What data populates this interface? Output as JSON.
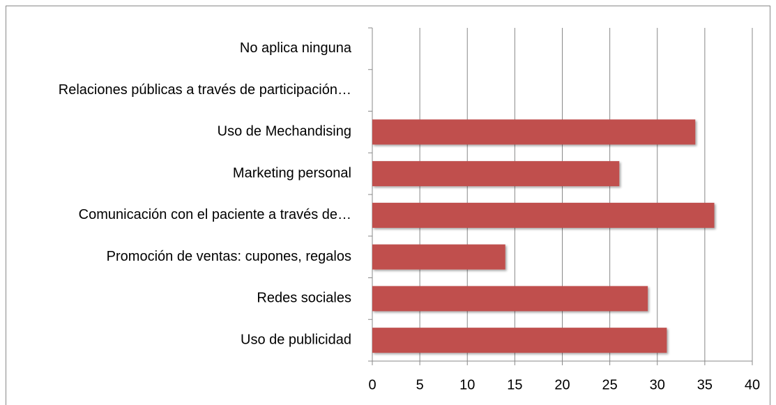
{
  "chart_data": {
    "type": "barh",
    "categories": [
      "No aplica ninguna",
      "Relaciones públicas a través de participación…",
      "Uso de Mechandising",
      "Marketing personal",
      "Comunicación con el paciente a través de…",
      "Promoción de ventas: cupones, regalos",
      "Redes sociales",
      "Uso de publicidad"
    ],
    "values": [
      0,
      0,
      34,
      26,
      36,
      14,
      29,
      31
    ],
    "color": "#c0504d",
    "xlim": [
      0,
      40
    ],
    "xticks": [
      0,
      5,
      10,
      15,
      20,
      25,
      30,
      35,
      40
    ],
    "grid": true
  }
}
